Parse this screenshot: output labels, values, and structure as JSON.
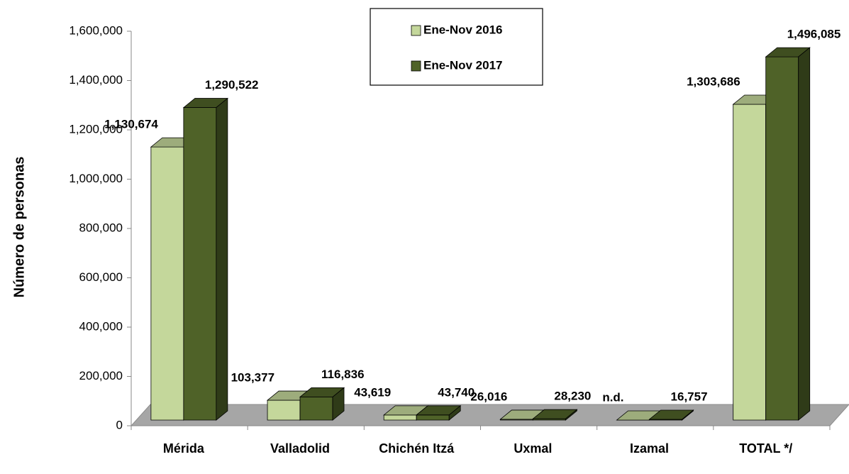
{
  "chart_data": {
    "type": "bar3d",
    "y_axis_label": "Número de personas",
    "categories": [
      "Mérida",
      "Valladolid",
      "Chichén Itzá",
      "Uxmal",
      "Izamal",
      "TOTAL */"
    ],
    "series": [
      {
        "name": "Ene-Nov 2016",
        "color": "#c4d79b",
        "values": [
          1130674,
          103377,
          43619,
          26016,
          null,
          1303686
        ],
        "value_labels": [
          "1,130,674",
          "103,377",
          "43,619",
          "26,016",
          "n.d.",
          "1,303,686"
        ]
      },
      {
        "name": "Ene-Nov 2017",
        "color": "#4f6228",
        "values": [
          1290522,
          116836,
          43740,
          28230,
          16757,
          1496085
        ],
        "value_labels": [
          "1,290,522",
          "116,836",
          "43,740",
          "28,230",
          "16,757",
          "1,496,085"
        ]
      }
    ],
    "ylim": [
      0,
      1600000
    ],
    "yticks": [
      0,
      {
        "value": 200000,
        "label": "200,000"
      },
      {
        "value": 400000,
        "label": "400,000"
      },
      {
        "value": 600000,
        "label": "600,000"
      },
      {
        "value": 800000,
        "label": "800,000"
      },
      {
        "value": 1000000,
        "label": "1,000,000"
      },
      {
        "value": 1200000,
        "label": "1,200,000"
      },
      {
        "value": 1400000,
        "label": "1,400,000"
      },
      {
        "value": 1600000,
        "label": "1,600,000"
      }
    ],
    "legend": "top"
  }
}
